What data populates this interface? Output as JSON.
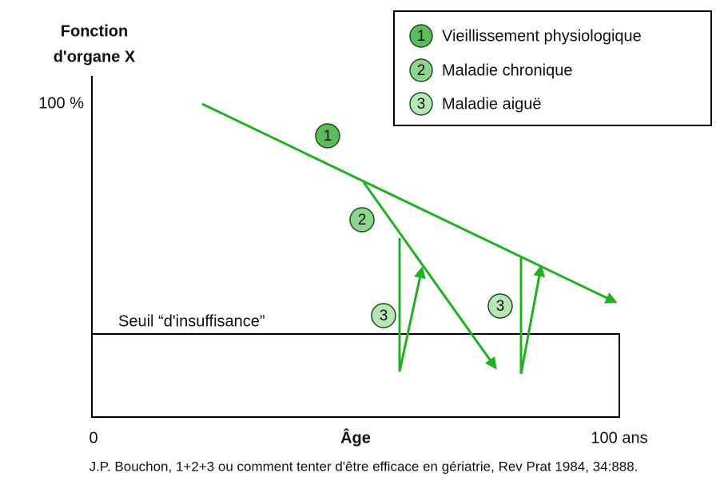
{
  "y_axis": {
    "label_lines": [
      "Fonction",
      "d'organe X"
    ],
    "top_label": "100 %"
  },
  "x_axis": {
    "start_label": "0",
    "label": "Âge",
    "end_label": "100 ans"
  },
  "threshold_label": "Seuil “d'insuffisance”",
  "legend": [
    {
      "number": "1",
      "label": "Vieillissement physiologique"
    },
    {
      "number": "2",
      "label": "Maladie chronique"
    },
    {
      "number": "3",
      "label": "Maladie aiguë"
    }
  ],
  "markers": [
    "1",
    "2",
    "3",
    "3"
  ],
  "caption": "J.P. Bouchon, 1+2+3 ou comment tenter d'être efficace en gériatrie, Rev Prat 1984, 34:888."
}
